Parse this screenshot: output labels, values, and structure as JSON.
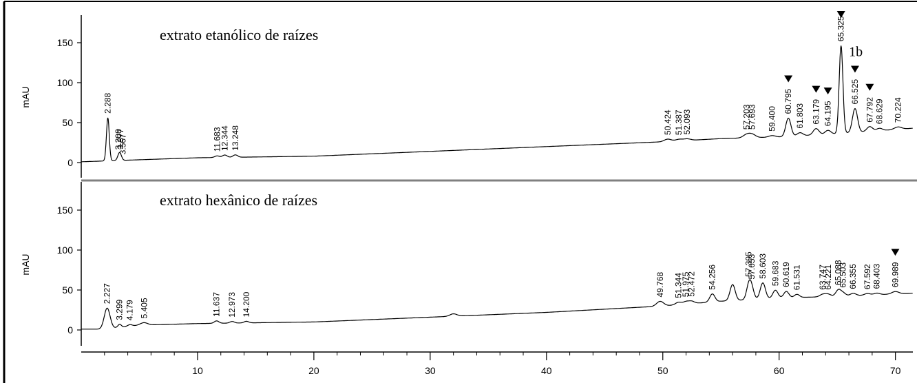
{
  "chart_data": {
    "type": "line",
    "xlim": [
      0,
      71.5
    ],
    "ylim": [
      -12,
      192
    ],
    "x_ticks": [
      10,
      20,
      30,
      40,
      50,
      60,
      70
    ],
    "y_ticks": [
      0,
      50,
      100,
      150
    ],
    "panels": [
      {
        "title": "extrato etanólico de raízes",
        "ylabel": "mAU",
        "extra_label": {
          "text": "1b",
          "x": 66.0,
          "y": 133
        },
        "peak_labels": [
          {
            "x": 2.288,
            "text": "2.288"
          },
          {
            "x": 3.208,
            "text": "3.208"
          },
          {
            "x": 3.377,
            "text": "3.377"
          },
          {
            "x": 3.567,
            "text": "3.567"
          },
          {
            "x": 11.683,
            "text": "11.683"
          },
          {
            "x": 12.344,
            "text": "12.344"
          },
          {
            "x": 13.248,
            "text": "13.248"
          },
          {
            "x": 50.424,
            "text": "50.424"
          },
          {
            "x": 51.387,
            "text": "51.387"
          },
          {
            "x": 52.093,
            "text": "52.093"
          },
          {
            "x": 57.203,
            "text": "57.203"
          },
          {
            "x": 57.693,
            "text": "57.693"
          },
          {
            "x": 59.4,
            "text": "59.400"
          },
          {
            "x": 60.795,
            "text": "60.795"
          },
          {
            "x": 61.803,
            "text": "61.803"
          },
          {
            "x": 63.179,
            "text": "63.179"
          },
          {
            "x": 64.195,
            "text": "64.195"
          },
          {
            "x": 65.325,
            "text": "65.325"
          },
          {
            "x": 66.525,
            "text": "66.525"
          },
          {
            "x": 67.792,
            "text": "67.792"
          },
          {
            "x": 68.629,
            "text": "68.629"
          },
          {
            "x": 70.224,
            "text": "70.224"
          }
        ],
        "markers": [
          60.795,
          63.179,
          64.195,
          65.325,
          66.525,
          67.792
        ],
        "baseline": [
          [
            0,
            1
          ],
          [
            2,
            2
          ],
          [
            10,
            6
          ],
          [
            20,
            8
          ],
          [
            30,
            14
          ],
          [
            40,
            20
          ],
          [
            50,
            26
          ],
          [
            55,
            30
          ],
          [
            60,
            32
          ],
          [
            65,
            36
          ],
          [
            71.5,
            43
          ]
        ],
        "peaks": [
          [
            2.288,
            54,
            0.12
          ],
          [
            3.3,
            10,
            0.15
          ],
          [
            11.68,
            2,
            0.2
          ],
          [
            12.34,
            3,
            0.2
          ],
          [
            13.25,
            3,
            0.2
          ],
          [
            50.42,
            3,
            0.3
          ],
          [
            51.39,
            2,
            0.3
          ],
          [
            52.09,
            2,
            0.3
          ],
          [
            57.2,
            4,
            0.3
          ],
          [
            57.69,
            4,
            0.3
          ],
          [
            59.4,
            2,
            0.3
          ],
          [
            60.795,
            23,
            0.22
          ],
          [
            61.8,
            4,
            0.25
          ],
          [
            63.18,
            8,
            0.25
          ],
          [
            64.2,
            5,
            0.25
          ],
          [
            65.325,
            110,
            0.16
          ],
          [
            66.525,
            30,
            0.22
          ],
          [
            67.79,
            6,
            0.25
          ],
          [
            68.63,
            3,
            0.25
          ],
          [
            70.22,
            3,
            0.3
          ]
        ]
      },
      {
        "title": "extrato hexânico de raízes",
        "ylabel": "mAU",
        "peak_labels": [
          {
            "x": 2.227,
            "text": "2.227"
          },
          {
            "x": 3.299,
            "text": "3.299"
          },
          {
            "x": 4.179,
            "text": "4.179"
          },
          {
            "x": 5.405,
            "text": "5.405"
          },
          {
            "x": 11.637,
            "text": "11.637"
          },
          {
            "x": 12.973,
            "text": "12.973"
          },
          {
            "x": 14.2,
            "text": "14.200"
          },
          {
            "x": 49.768,
            "text": "49.768"
          },
          {
            "x": 51.344,
            "text": "51.344"
          },
          {
            "x": 51.975,
            "text": "51.975"
          },
          {
            "x": 52.472,
            "text": "52.472"
          },
          {
            "x": 54.256,
            "text": "54.256"
          },
          {
            "x": 57.395,
            "text": "57.395"
          },
          {
            "x": 57.653,
            "text": "57.653"
          },
          {
            "x": 58.603,
            "text": "58.603"
          },
          {
            "x": 59.683,
            "text": "59.683"
          },
          {
            "x": 60.619,
            "text": "60.619"
          },
          {
            "x": 61.531,
            "text": "61.531"
          },
          {
            "x": 63.747,
            "text": "63.747"
          },
          {
            "x": 64.221,
            "text": "64.221"
          },
          {
            "x": 65.088,
            "text": "65.088"
          },
          {
            "x": 65.503,
            "text": "65.503"
          },
          {
            "x": 66.355,
            "text": "66.355"
          },
          {
            "x": 67.592,
            "text": "67.592"
          },
          {
            "x": 68.403,
            "text": "68.403"
          },
          {
            "x": 69.989,
            "text": "69.989"
          }
        ],
        "markers": [
          69.989
        ],
        "baseline": [
          [
            0,
            1
          ],
          [
            2,
            1
          ],
          [
            5,
            6
          ],
          [
            10,
            8
          ],
          [
            20,
            10
          ],
          [
            30,
            16
          ],
          [
            40,
            22
          ],
          [
            50,
            30
          ],
          [
            55,
            36
          ],
          [
            60,
            40
          ],
          [
            65,
            42
          ],
          [
            71.5,
            46
          ]
        ],
        "peaks": [
          [
            2.227,
            26,
            0.25
          ],
          [
            3.3,
            4,
            0.15
          ],
          [
            4.18,
            2,
            0.2
          ],
          [
            5.4,
            3,
            0.3
          ],
          [
            11.64,
            3,
            0.2
          ],
          [
            12.97,
            2,
            0.2
          ],
          [
            14.2,
            2,
            0.2
          ],
          [
            32.0,
            3,
            0.3
          ],
          [
            49.77,
            6,
            0.3
          ],
          [
            51.34,
            3,
            0.25
          ],
          [
            51.98,
            3,
            0.25
          ],
          [
            52.47,
            3,
            0.25
          ],
          [
            54.26,
            10,
            0.22
          ],
          [
            56.0,
            20,
            0.22
          ],
          [
            57.4,
            18,
            0.2
          ],
          [
            57.65,
            12,
            0.2
          ],
          [
            58.6,
            20,
            0.22
          ],
          [
            59.68,
            10,
            0.22
          ],
          [
            60.62,
            8,
            0.22
          ],
          [
            61.53,
            4,
            0.22
          ],
          [
            63.75,
            3,
            0.25
          ],
          [
            64.22,
            3,
            0.25
          ],
          [
            65.09,
            8,
            0.22
          ],
          [
            65.5,
            4,
            0.22
          ],
          [
            66.36,
            3,
            0.25
          ],
          [
            67.59,
            2,
            0.25
          ],
          [
            68.4,
            2,
            0.25
          ],
          [
            69.99,
            3,
            0.3
          ]
        ]
      }
    ]
  }
}
